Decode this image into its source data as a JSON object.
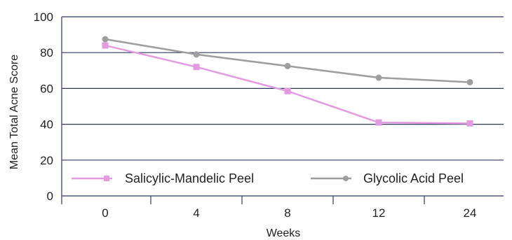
{
  "chart_data": {
    "type": "line",
    "title": "",
    "xlabel": "Weeks",
    "ylabel": "Mean Total Acne Score",
    "categories": [
      "0",
      "4",
      "8",
      "12",
      "24"
    ],
    "ylim": [
      0,
      100
    ],
    "yticks": [
      "0",
      "20",
      "40",
      "60",
      "80",
      "100"
    ],
    "grid": "horizontal",
    "legend_position": "bottom-inside",
    "series": [
      {
        "name": "Salicylic-Mandelic Peel",
        "values": [
          84,
          72,
          58.5,
          41,
          40.5
        ],
        "color": "#e39ae0",
        "marker": "square"
      },
      {
        "name": "Glycolic Acid Peel",
        "values": [
          87.5,
          79,
          72.5,
          66,
          63.5
        ],
        "color": "#9e9e9e",
        "marker": "circle"
      }
    ]
  }
}
